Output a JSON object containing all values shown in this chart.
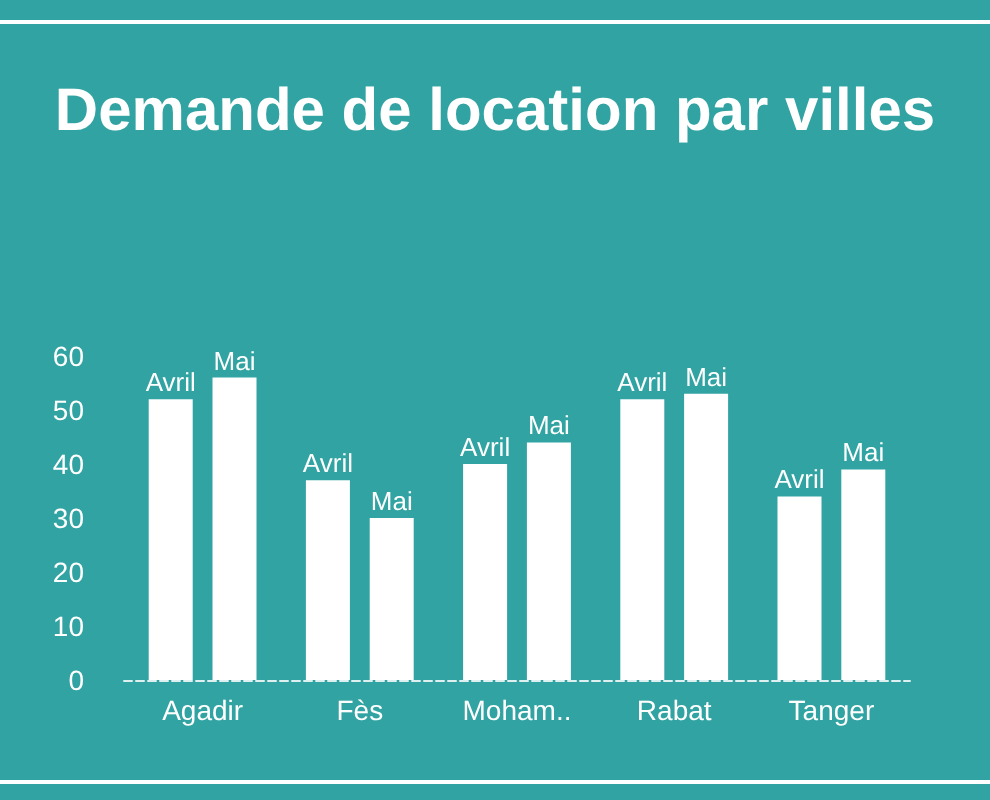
{
  "chart_data": {
    "type": "bar",
    "title": "Demande de location par villes",
    "categories": [
      "Agadir",
      "Fès",
      "Moham..",
      "Rabat",
      "Tanger"
    ],
    "series": [
      {
        "name": "Avril",
        "color": "#ffffff",
        "values": [
          52,
          37,
          40,
          52,
          34
        ]
      },
      {
        "name": "Mai",
        "color": "#ffffff",
        "values": [
          56,
          30,
          44,
          53,
          39
        ]
      }
    ],
    "ylim": [
      0,
      60
    ],
    "yticks": [
      0,
      10,
      20,
      30,
      40,
      50,
      60
    ],
    "grid": false,
    "legend": false
  }
}
